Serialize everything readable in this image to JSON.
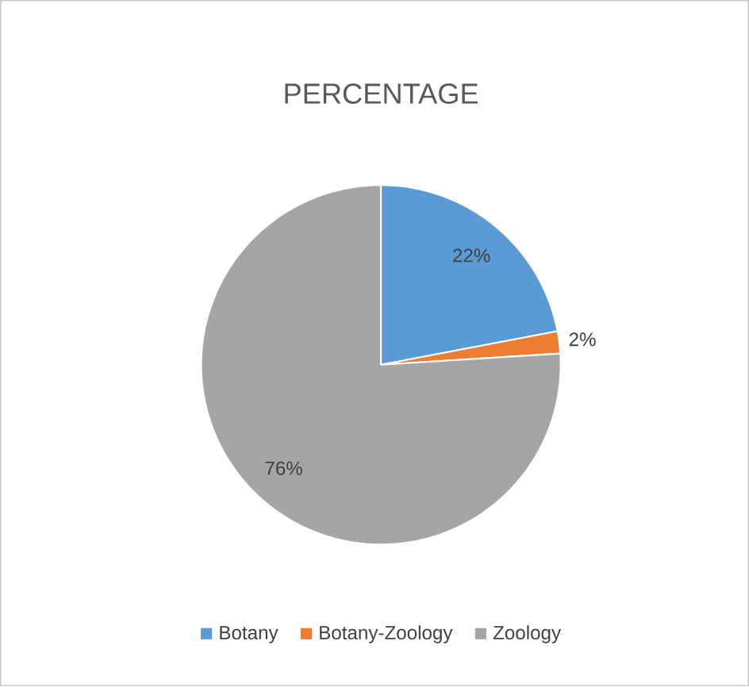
{
  "chart_data": {
    "type": "pie",
    "title": "PERCENTAGE",
    "categories": [
      "Botany",
      "Botany-Zoology",
      "Zoology"
    ],
    "values": [
      22,
      2,
      76
    ],
    "colors": [
      "#5b9bd5",
      "#ed7d31",
      "#a5a5a5"
    ],
    "value_labels": [
      "22%",
      "2%",
      "76%"
    ],
    "legend": "bottom"
  }
}
